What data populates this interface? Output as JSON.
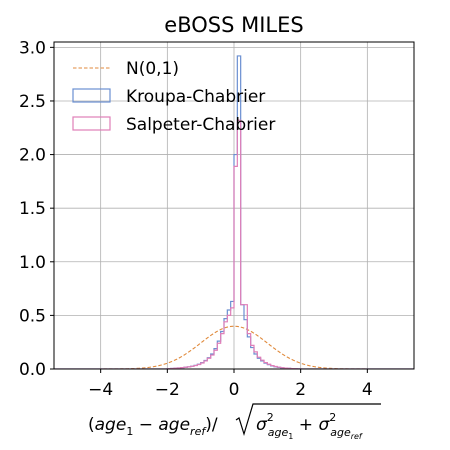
{
  "chart_data": {
    "type": "histogram",
    "title": "eBOSS MILES",
    "xlabel_tex": "(age_1 - age_ref)/sqrt(sigma^2_age_1 + sigma^2_age_ref)",
    "xlim": [
      -5.4,
      5.4
    ],
    "ylim": [
      0,
      3.05
    ],
    "xticks": [
      -4,
      -2,
      0,
      2,
      4
    ],
    "xtick_labels": [
      "−4",
      "−2",
      "0",
      "2",
      "4"
    ],
    "yticks": [
      0.0,
      0.5,
      1.0,
      1.5,
      2.0,
      2.5,
      3.0
    ],
    "ytick_labels": [
      "0.0",
      "0.5",
      "1.0",
      "1.5",
      "2.0",
      "2.5",
      "3.0"
    ],
    "grid": true,
    "legend": "upper-left",
    "bin_width": 0.1,
    "series": [
      {
        "name": "N(0,1)",
        "kind": "line",
        "style": "dashed",
        "color": "#e08a3c",
        "function": "normal_pdf_mean0_sd1"
      },
      {
        "name": "Kroupa-Chabrier",
        "kind": "step",
        "color": "#6a8fd1",
        "bin_edges_start": -2.0,
        "values": [
          0.003,
          0.005,
          0.007,
          0.01,
          0.013,
          0.016,
          0.02,
          0.026,
          0.034,
          0.045,
          0.06,
          0.08,
          0.105,
          0.14,
          0.19,
          0.26,
          0.35,
          0.47,
          0.55,
          0.63,
          2.0,
          2.92,
          0.6,
          0.46,
          0.3,
          0.2,
          0.14,
          0.1,
          0.075,
          0.055,
          0.04,
          0.029,
          0.021,
          0.015,
          0.011,
          0.008,
          0.006,
          0.004,
          0.003,
          0.002
        ]
      },
      {
        "name": "Salpeter-Chabrier",
        "kind": "step",
        "color": "#e07fb8",
        "bin_edges_start": -2.0,
        "values": [
          0.003,
          0.005,
          0.007,
          0.01,
          0.013,
          0.016,
          0.02,
          0.025,
          0.032,
          0.042,
          0.056,
          0.075,
          0.1,
          0.13,
          0.175,
          0.24,
          0.33,
          0.44,
          0.5,
          0.57,
          1.89,
          2.32,
          0.6,
          0.6,
          0.33,
          0.22,
          0.16,
          0.11,
          0.082,
          0.06,
          0.044,
          0.032,
          0.023,
          0.017,
          0.012,
          0.009,
          0.006,
          0.004,
          0.003,
          0.002
        ]
      }
    ]
  }
}
